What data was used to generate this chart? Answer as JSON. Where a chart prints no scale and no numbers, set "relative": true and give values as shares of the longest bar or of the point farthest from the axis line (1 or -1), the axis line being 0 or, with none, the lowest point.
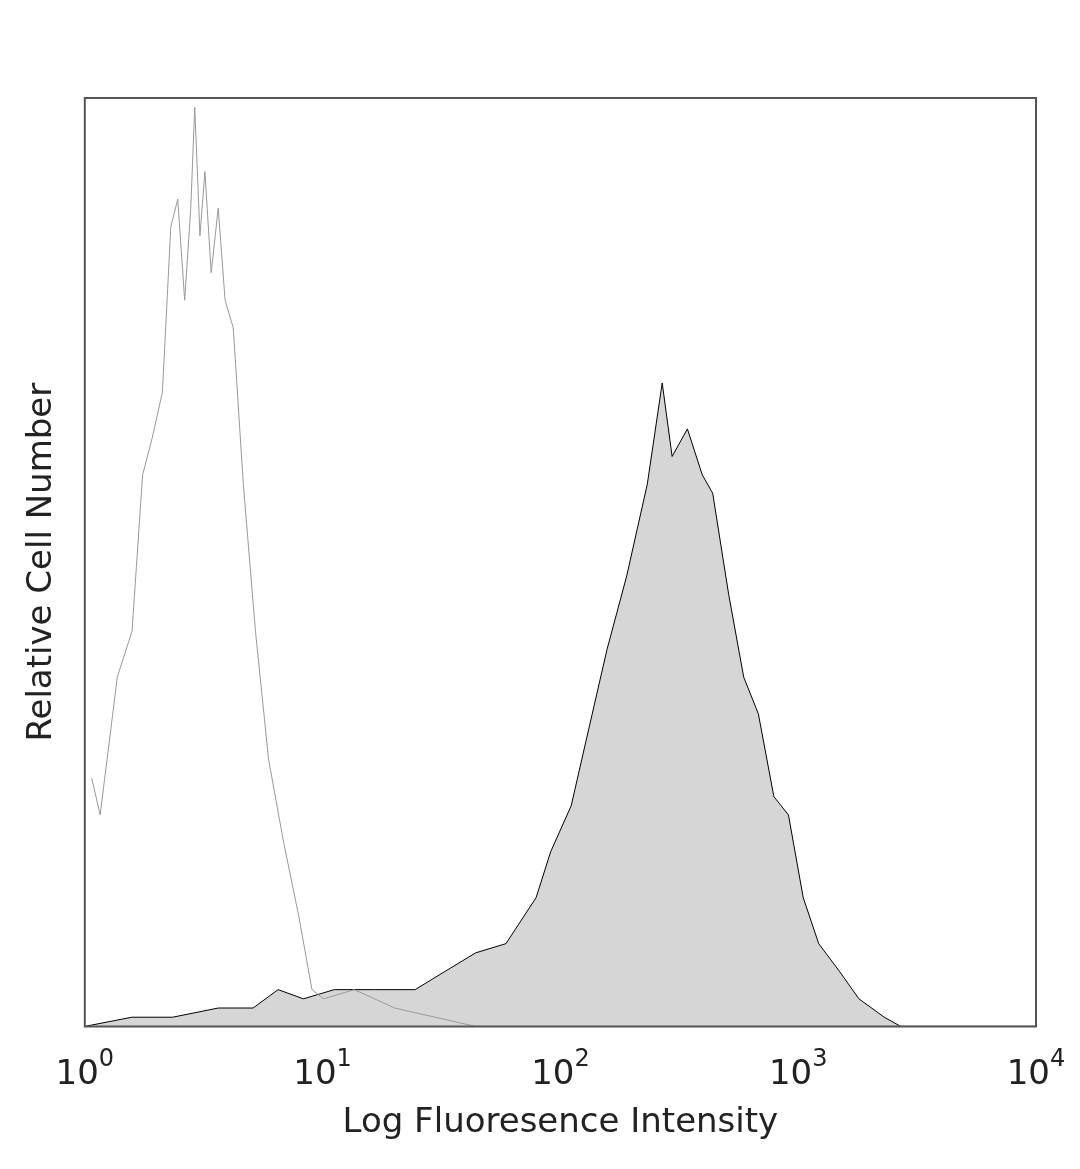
{
  "chart_data": {
    "type": "line",
    "relative": true,
    "xlabel": "Log Fluoresence Intensity",
    "ylabel": "Relative Cell Number",
    "log": "x",
    "xlim": [
      1,
      10000
    ],
    "xticks": [
      {
        "value": 1,
        "label": "10$^{0}$"
      },
      {
        "value": 10,
        "label": "10$^{1}$"
      },
      {
        "value": 100,
        "label": "10$^{2}$"
      },
      {
        "value": 1000,
        "label": "10$^{3}$"
      },
      {
        "value": 10000,
        "label": "10$^{4}$"
      }
    ],
    "grid": false,
    "legend": false,
    "marker": "none",
    "series": [
      {
        "type": "area",
        "color": "#d6d6d6",
        "x": [
          1,
          1.58,
          2.34,
          3.64,
          5.1,
          6.5,
          8.3,
          11.2,
          16.5,
          24.5,
          32.8,
          44,
          59,
          79,
          91,
          111,
          128,
          157,
          190,
          232,
          268,
          295,
          342,
          395,
          437,
          510,
          590,
          680,
          790,
          910,
          1050,
          1220,
          1490,
          1800,
          2300,
          2700,
          10000
        ],
        "values": [
          0,
          0.01,
          0.01,
          0.02,
          0.02,
          0.04,
          0.03,
          0.04,
          0.04,
          0.04,
          0.06,
          0.08,
          0.09,
          0.14,
          0.19,
          0.24,
          0.31,
          0.41,
          0.49,
          0.59,
          0.7,
          0.62,
          0.65,
          0.6,
          0.58,
          0.47,
          0.38,
          0.34,
          0.25,
          0.23,
          0.14,
          0.09,
          0.06,
          0.03,
          0.01,
          0,
          0
        ]
      },
      {
        "type": "line",
        "color": "#999999",
        "x": [
          1.07,
          1.16,
          1.24,
          1.37,
          1.58,
          1.75,
          1.92,
          2.12,
          2.3,
          2.46,
          2.63,
          2.79,
          2.9,
          3.05,
          3.2,
          3.4,
          3.64,
          3.89,
          4.21,
          4.64,
          5.22,
          5.93,
          6.86,
          7.94,
          9.02,
          10.1,
          13.6,
          20.1,
          29.7,
          44,
          10000
        ],
        "values": [
          0.27,
          0.23,
          0.29,
          0.38,
          0.43,
          0.6,
          0.64,
          0.69,
          0.87,
          0.9,
          0.79,
          0.89,
          1,
          0.86,
          0.93,
          0.82,
          0.89,
          0.79,
          0.76,
          0.59,
          0.43,
          0.29,
          0.2,
          0.12,
          0.04,
          0.03,
          0.04,
          0.02,
          0.01,
          0,
          0
        ]
      }
    ]
  }
}
